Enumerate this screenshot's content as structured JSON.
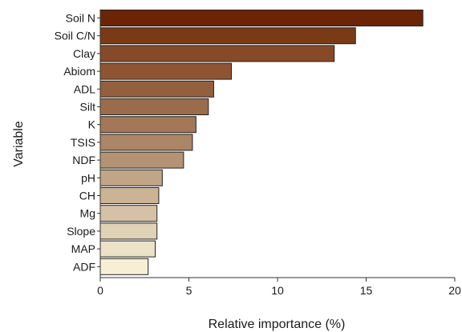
{
  "chart_data": {
    "type": "bar",
    "orientation": "horizontal",
    "title": "",
    "xlabel": "Relative importance (%)",
    "ylabel": "Variable",
    "xlim": [
      0,
      20
    ],
    "xticks": [
      0,
      5,
      10,
      15,
      20
    ],
    "grid": false,
    "bar_edge_color": "#222222",
    "categories": [
      "Soil N",
      "Soil C/N",
      "Clay",
      "Abiom",
      "ADL",
      "Silt",
      "K",
      "TSIS",
      "NDF",
      "pH",
      "CH",
      "Mg",
      "Slope",
      "MAP",
      "ADF"
    ],
    "values": [
      18.2,
      14.4,
      13.2,
      7.4,
      6.4,
      6.1,
      5.4,
      5.2,
      4.7,
      3.5,
      3.3,
      3.2,
      3.2,
      3.1,
      2.7
    ],
    "colors": [
      "#6b2506",
      "#7b3a16",
      "#874a28",
      "#8f5532",
      "#93603e",
      "#9b6c4c",
      "#a37757",
      "#ab8565",
      "#b39373",
      "#c0a586",
      "#cbb395",
      "#d5c2a6",
      "#e0d2b7",
      "#ebe2c8",
      "#f6efd6"
    ]
  }
}
